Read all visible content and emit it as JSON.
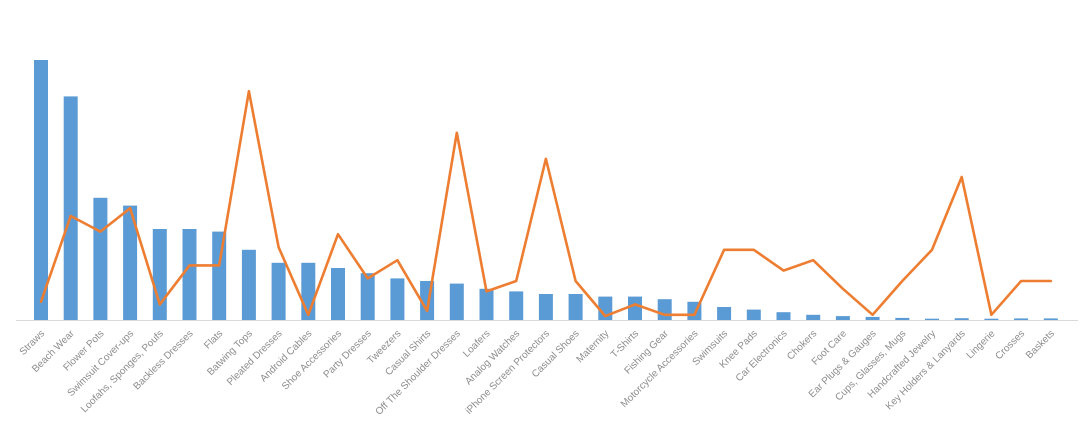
{
  "chart_data": {
    "type": "combo",
    "title": "",
    "xlabel": "",
    "ylabel": "",
    "ylim": [
      0,
      105
    ],
    "grid": false,
    "legend_position": "none",
    "axis_line_color": "#d9d9d9",
    "label_color": "#8c8c8c",
    "categories": [
      "Straws",
      "Beach Wear",
      "Flower Pots",
      "Swimsuit Cover-ups",
      "Loofahs, Sponges, Poufs",
      "Backless Dresses",
      "Flats",
      "Batwing Tops",
      "Pleated Dresses",
      "Android Cables",
      "Shoe Accessories",
      "Party Dresses",
      "Tweezers",
      "Casual Shirts",
      "Off The Shoulder Dresses",
      "Loafers",
      "Analog Watches",
      "iPhone Screen Protectors",
      "Casual Shoes",
      "Maternity",
      "T-Shirts",
      "Fishing Gear",
      "Motorcycle Accessories",
      "Swimsuits",
      "Knee Pads",
      "Car Electronics",
      "Chokers",
      "Foot Care",
      "Ear Plugs & Gauges",
      "Cups, Glasses, Mugs",
      "Handcrafted Jewelry",
      "Key Holders & Lanyards",
      "Lingerie",
      "Crosses",
      "Baskets"
    ],
    "series": [
      {
        "name": "bar-series",
        "type": "bar",
        "color": "#5b9bd5",
        "values": [
          100,
          86,
          47,
          44,
          35,
          35,
          34,
          27,
          22,
          22,
          20,
          18,
          16,
          15,
          14,
          12,
          11,
          10,
          10,
          9,
          9,
          8,
          7,
          5,
          4,
          3,
          2,
          1.5,
          1.2,
          0.8,
          0.5,
          0.7,
          0.5,
          0.6,
          0.6
        ]
      },
      {
        "name": "line-series",
        "type": "line",
        "color": "#ed7d31",
        "values": [
          7,
          40,
          34,
          43,
          6,
          21,
          21,
          88,
          28,
          2,
          33,
          16,
          23,
          3.5,
          72,
          11,
          15,
          62,
          15,
          1.5,
          6,
          2,
          2,
          27,
          27,
          19,
          23,
          12,
          2,
          15,
          27,
          55,
          2,
          15,
          15
        ]
      }
    ]
  },
  "layout_hints": {
    "label_font_size": "10"
  }
}
